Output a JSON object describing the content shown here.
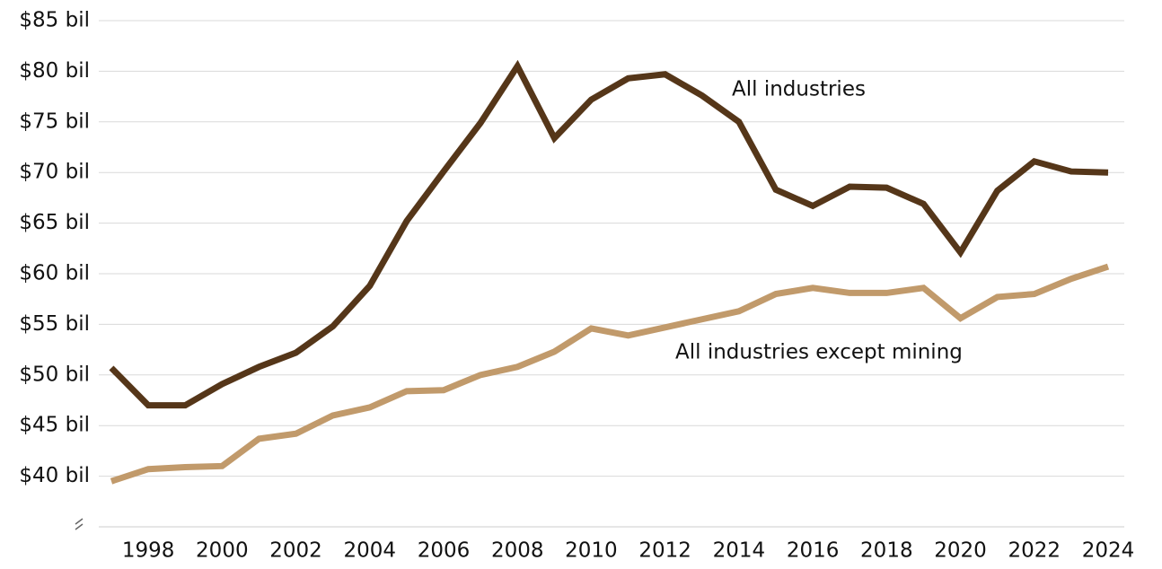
{
  "chart_data": {
    "type": "line",
    "x": [
      1997,
      1998,
      1999,
      2000,
      2001,
      2002,
      2003,
      2004,
      2005,
      2006,
      2007,
      2008,
      2009,
      2010,
      2011,
      2012,
      2013,
      2014,
      2015,
      2016,
      2017,
      2018,
      2019,
      2020,
      2021,
      2022,
      2023,
      2024
    ],
    "series": [
      {
        "name": "All industries",
        "color": "#553619",
        "values": [
          50.7,
          47.0,
          47.0,
          49.1,
          50.8,
          52.2,
          54.8,
          58.8,
          65.2,
          70.1,
          74.9,
          80.5,
          73.4,
          77.2,
          79.3,
          79.7,
          77.6,
          75.0,
          68.3,
          66.7,
          68.6,
          68.5,
          66.9,
          62.1,
          68.2,
          71.1,
          70.1,
          70.0
        ]
      },
      {
        "name": "All industries except mining",
        "color": "#c19a6b",
        "values": [
          39.5,
          40.7,
          40.9,
          41.0,
          43.7,
          44.2,
          46.0,
          46.8,
          48.4,
          48.5,
          50.0,
          50.8,
          52.3,
          54.6,
          53.9,
          54.7,
          55.5,
          56.3,
          58.0,
          58.6,
          58.1,
          58.1,
          58.6,
          55.6,
          57.7,
          58.0,
          59.5,
          60.7
        ]
      }
    ],
    "xlim": [
      1997,
      2024
    ],
    "xticks": [
      1998,
      2000,
      2002,
      2004,
      2006,
      2008,
      2010,
      2012,
      2014,
      2016,
      2018,
      2020,
      2022,
      2024
    ],
    "ylim": [
      35,
      85
    ],
    "yticks": [
      {
        "value": 40,
        "label": "$40 bil"
      },
      {
        "value": 45,
        "label": "$45 bil"
      },
      {
        "value": 50,
        "label": "$50 bil"
      },
      {
        "value": 55,
        "label": "$55 bil"
      },
      {
        "value": 60,
        "label": "$60 bil"
      },
      {
        "value": 65,
        "label": "$65 bil"
      },
      {
        "value": 70,
        "label": "$70 bil"
      },
      {
        "value": 75,
        "label": "$75 bil"
      },
      {
        "value": 80,
        "label": "$80 bil"
      },
      {
        "value": 85,
        "label": "$85 bil"
      }
    ],
    "grid": true
  }
}
